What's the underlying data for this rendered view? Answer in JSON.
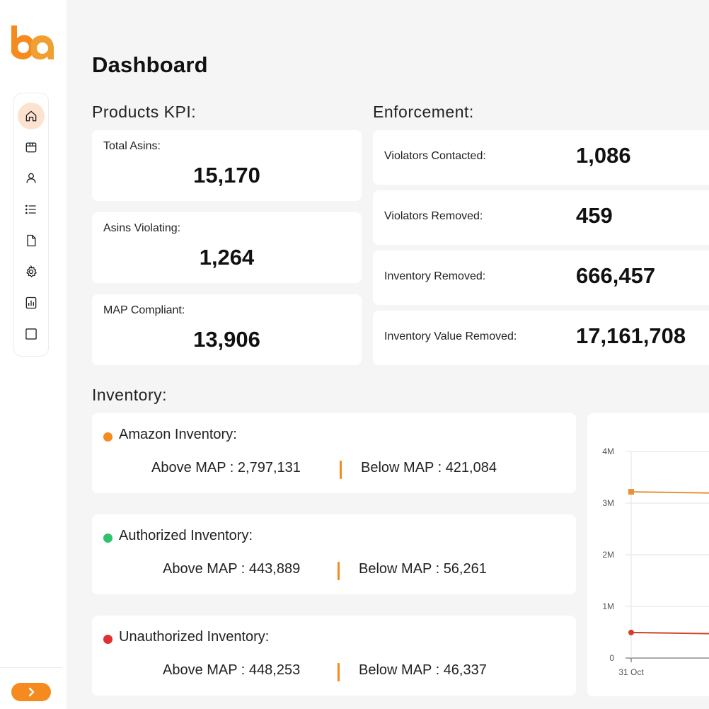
{
  "brand": {
    "logo_text": "ba",
    "accent": "#f58a1f"
  },
  "page": {
    "title": "Dashboard"
  },
  "sidebar": {
    "items": [
      {
        "icon": "home-icon",
        "active": true
      },
      {
        "icon": "package-icon",
        "active": false
      },
      {
        "icon": "user-icon",
        "active": false
      },
      {
        "icon": "list-icon",
        "active": false
      },
      {
        "icon": "document-icon",
        "active": false
      },
      {
        "icon": "gear-icon",
        "active": false
      },
      {
        "icon": "report-icon",
        "active": false
      },
      {
        "icon": "square-icon",
        "active": false
      }
    ],
    "expand_icon": "chevron-right-icon"
  },
  "products_kpi": {
    "title": "Products KPI:",
    "cards": [
      {
        "label": "Total Asins:",
        "value": "15,170"
      },
      {
        "label": "Asins Violating:",
        "value": "1,264"
      },
      {
        "label": "MAP Compliant:",
        "value": "13,906"
      }
    ]
  },
  "enforcement": {
    "title": "Enforcement:",
    "cards": [
      {
        "label": "Violators Contacted:",
        "value": "1,086"
      },
      {
        "label": "Violators Removed:",
        "value": "459"
      },
      {
        "label": "Inventory Removed:",
        "value": "666,457"
      },
      {
        "label": "Inventory Value Removed:",
        "value": "17,161,708"
      }
    ]
  },
  "inventory": {
    "title": "Inventory:",
    "cards": [
      {
        "title": "Amazon Inventory:",
        "dot_color": "#f58a1f",
        "above_label": "Above MAP :",
        "above_value": "2,797,131",
        "below_label": "Below MAP :",
        "below_value": "421,084"
      },
      {
        "title": "Authorized Inventory:",
        "dot_color": "#2cc36b",
        "above_label": "Above MAP :",
        "above_value": "443,889",
        "below_label": "Below MAP :",
        "below_value": "56,261"
      },
      {
        "title": "Unauthorized Inventory:",
        "dot_color": "#e03030",
        "above_label": "Above MAP :",
        "above_value": "448,253",
        "below_label": "Below MAP :",
        "below_value": "46,337"
      }
    ]
  },
  "chart_data": {
    "type": "line",
    "title": "",
    "xlabel": "",
    "ylabel": "",
    "categories": [
      "31 Oct"
    ],
    "y_ticks": [
      "0",
      "1M",
      "2M",
      "3M",
      "4M"
    ],
    "ylim": [
      0,
      4000000
    ],
    "series": [
      {
        "name": "Amazon Inventory",
        "color": "#e8913a",
        "marker": "square",
        "values": [
          3218215
        ]
      },
      {
        "name": "Unauthorized Inventory",
        "color": "#d0402a",
        "marker": "circle",
        "values": [
          494590
        ]
      }
    ]
  }
}
